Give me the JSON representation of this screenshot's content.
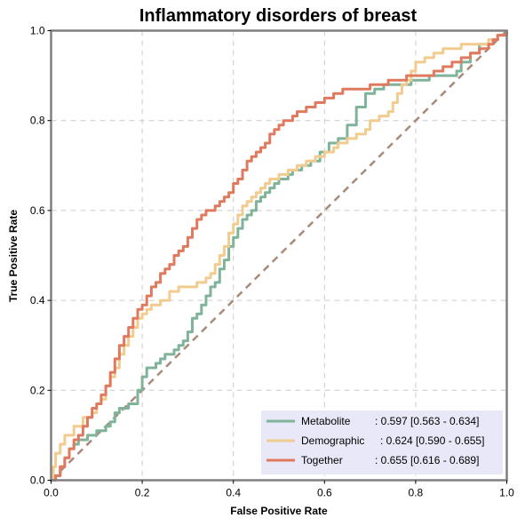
{
  "chart_data": {
    "type": "line",
    "title": "Inflammatory disorders of breast",
    "xlabel": "False Positive Rate",
    "ylabel": "True Positive Rate",
    "xlim": [
      0,
      1
    ],
    "ylim": [
      0,
      1
    ],
    "xticks": [
      "0.0",
      "0.2",
      "0.4",
      "0.6",
      "0.8",
      "1.0"
    ],
    "yticks": [
      "0.0",
      "0.2",
      "0.4",
      "0.6",
      "0.8",
      "1.0"
    ],
    "grid": true,
    "legend_position": "bottom-right",
    "colors": {
      "Metabolite": "#7fb49a",
      "Demographic": "#f2cc8f",
      "Together": "#e07a5f",
      "chance": "#a88a7a",
      "legend_bg": "#e8e8f8"
    },
    "series": [
      {
        "name": "Metabolite",
        "label_name": "Metabolite",
        "label_value": ": 0.597 [0.563 - 0.634]",
        "x": [
          0,
          0.01,
          0.02,
          0.03,
          0.04,
          0.05,
          0.06,
          0.08,
          0.1,
          0.12,
          0.13,
          0.14,
          0.15,
          0.17,
          0.19,
          0.2,
          0.21,
          0.22,
          0.23,
          0.24,
          0.25,
          0.27,
          0.28,
          0.29,
          0.3,
          0.31,
          0.32,
          0.33,
          0.34,
          0.35,
          0.36,
          0.37,
          0.38,
          0.39,
          0.4,
          0.41,
          0.42,
          0.43,
          0.44,
          0.45,
          0.46,
          0.47,
          0.48,
          0.49,
          0.5,
          0.51,
          0.52,
          0.53,
          0.55,
          0.57,
          0.59,
          0.61,
          0.63,
          0.65,
          0.67,
          0.69,
          0.71,
          0.73,
          0.75,
          0.77,
          0.79,
          0.81,
          0.83,
          0.85,
          0.87,
          0.89,
          0.9,
          0.92,
          0.94,
          0.96,
          0.98,
          1.0
        ],
        "y": [
          0,
          0.01,
          0.03,
          0.05,
          0.07,
          0.08,
          0.09,
          0.1,
          0.11,
          0.12,
          0.13,
          0.15,
          0.16,
          0.17,
          0.2,
          0.23,
          0.25,
          0.25,
          0.26,
          0.27,
          0.28,
          0.29,
          0.3,
          0.31,
          0.33,
          0.36,
          0.37,
          0.39,
          0.41,
          0.43,
          0.44,
          0.47,
          0.49,
          0.52,
          0.54,
          0.56,
          0.58,
          0.59,
          0.6,
          0.62,
          0.63,
          0.64,
          0.65,
          0.66,
          0.67,
          0.67,
          0.68,
          0.69,
          0.7,
          0.71,
          0.73,
          0.75,
          0.76,
          0.79,
          0.83,
          0.86,
          0.87,
          0.88,
          0.88,
          0.88,
          0.89,
          0.89,
          0.9,
          0.9,
          0.9,
          0.91,
          0.93,
          0.95,
          0.97,
          0.98,
          0.99,
          1.0
        ]
      },
      {
        "name": "Demographic",
        "label_name": "Demographic",
        "label_value": ": 0.624 [0.590 - 0.655]",
        "x": [
          0,
          0.005,
          0.01,
          0.02,
          0.03,
          0.05,
          0.07,
          0.09,
          0.1,
          0.11,
          0.12,
          0.13,
          0.14,
          0.15,
          0.16,
          0.17,
          0.18,
          0.19,
          0.2,
          0.21,
          0.22,
          0.24,
          0.26,
          0.28,
          0.3,
          0.32,
          0.34,
          0.35,
          0.36,
          0.37,
          0.38,
          0.39,
          0.4,
          0.41,
          0.42,
          0.43,
          0.44,
          0.45,
          0.46,
          0.47,
          0.48,
          0.5,
          0.52,
          0.54,
          0.56,
          0.58,
          0.6,
          0.62,
          0.63,
          0.65,
          0.67,
          0.69,
          0.7,
          0.72,
          0.74,
          0.75,
          0.76,
          0.77,
          0.78,
          0.79,
          0.8,
          0.82,
          0.84,
          0.86,
          0.88,
          0.9,
          0.92,
          0.94,
          0.96,
          0.98,
          1.0
        ],
        "y": [
          0,
          0.03,
          0.06,
          0.08,
          0.1,
          0.12,
          0.14,
          0.15,
          0.17,
          0.18,
          0.21,
          0.23,
          0.25,
          0.28,
          0.3,
          0.32,
          0.34,
          0.36,
          0.37,
          0.38,
          0.39,
          0.4,
          0.42,
          0.43,
          0.43,
          0.44,
          0.45,
          0.46,
          0.48,
          0.5,
          0.52,
          0.55,
          0.57,
          0.59,
          0.61,
          0.62,
          0.63,
          0.64,
          0.65,
          0.66,
          0.67,
          0.68,
          0.69,
          0.7,
          0.71,
          0.72,
          0.73,
          0.74,
          0.75,
          0.76,
          0.77,
          0.78,
          0.8,
          0.81,
          0.82,
          0.84,
          0.86,
          0.88,
          0.89,
          0.91,
          0.93,
          0.94,
          0.95,
          0.96,
          0.96,
          0.97,
          0.97,
          0.97,
          0.98,
          0.99,
          1.0
        ]
      },
      {
        "name": "Together",
        "label_name": "Together",
        "label_value": ": 0.655 [0.616 - 0.689]",
        "x": [
          0,
          0.01,
          0.02,
          0.03,
          0.04,
          0.05,
          0.06,
          0.07,
          0.08,
          0.09,
          0.1,
          0.11,
          0.12,
          0.13,
          0.14,
          0.15,
          0.16,
          0.17,
          0.18,
          0.19,
          0.2,
          0.21,
          0.22,
          0.23,
          0.24,
          0.25,
          0.26,
          0.27,
          0.28,
          0.29,
          0.3,
          0.31,
          0.32,
          0.33,
          0.34,
          0.35,
          0.36,
          0.37,
          0.38,
          0.39,
          0.4,
          0.41,
          0.42,
          0.43,
          0.44,
          0.45,
          0.46,
          0.47,
          0.48,
          0.49,
          0.5,
          0.51,
          0.52,
          0.53,
          0.54,
          0.56,
          0.58,
          0.6,
          0.62,
          0.64,
          0.66,
          0.68,
          0.7,
          0.72,
          0.74,
          0.76,
          0.78,
          0.8,
          0.82,
          0.84,
          0.86,
          0.88,
          0.9,
          0.92,
          0.94,
          0.96,
          0.97,
          0.98,
          1.0
        ],
        "y": [
          0,
          0.01,
          0.03,
          0.05,
          0.07,
          0.09,
          0.1,
          0.12,
          0.14,
          0.16,
          0.17,
          0.19,
          0.21,
          0.24,
          0.27,
          0.3,
          0.32,
          0.34,
          0.36,
          0.38,
          0.39,
          0.41,
          0.43,
          0.44,
          0.46,
          0.47,
          0.48,
          0.5,
          0.51,
          0.52,
          0.54,
          0.56,
          0.58,
          0.59,
          0.6,
          0.6,
          0.61,
          0.62,
          0.63,
          0.64,
          0.66,
          0.67,
          0.69,
          0.71,
          0.72,
          0.73,
          0.74,
          0.75,
          0.77,
          0.78,
          0.79,
          0.8,
          0.8,
          0.81,
          0.82,
          0.83,
          0.84,
          0.85,
          0.86,
          0.87,
          0.87,
          0.87,
          0.88,
          0.88,
          0.89,
          0.89,
          0.9,
          0.9,
          0.9,
          0.91,
          0.92,
          0.93,
          0.94,
          0.95,
          0.96,
          0.97,
          0.98,
          0.99,
          1.0
        ]
      }
    ]
  }
}
